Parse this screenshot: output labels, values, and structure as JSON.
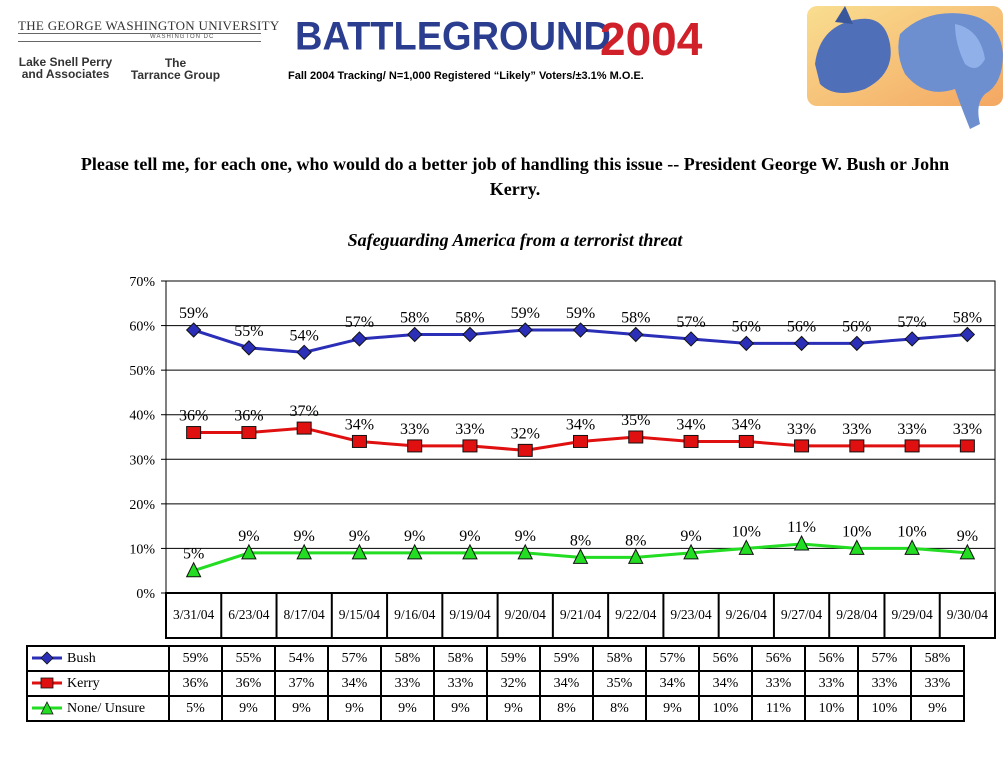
{
  "header": {
    "university": "THE GEORGE WASHINGTON UNIVERSITY",
    "university_sub": "WASHINGTON DC",
    "firm1": "Lake Snell Perry and Associates",
    "firm1_line1": "Lake Snell Perry",
    "firm1_line2": "and Associates",
    "firm2_line1": "The",
    "firm2_line2": "Tarrance Group",
    "battleground": "BATTLEGROUND",
    "year": "2004",
    "tracking": "Fall 2004 Tracking/ N=1,000 Registered “Likely” Voters/±3.1% M.O.E."
  },
  "question": "Please tell me, for each one, who would do a better job of handling this issue  --  President George W. Bush or John Kerry.",
  "colors": {
    "bush": "#2b2fb8",
    "kerry": "#e01010",
    "none": "#22dd22",
    "title_blue": "#2a3d8f",
    "title_red": "#d0202a"
  },
  "chart_data": {
    "type": "line",
    "title": "Safeguarding America from a terrorist threat",
    "categories": [
      "3/31/04",
      "6/23/04",
      "8/17/04",
      "9/15/04",
      "9/16/04",
      "9/19/04",
      "9/20/04",
      "9/21/04",
      "9/22/04",
      "9/23/04",
      "9/26/04",
      "9/27/04",
      "9/28/04",
      "9/29/04",
      "9/30/04"
    ],
    "yticks": [
      "0%",
      "10%",
      "20%",
      "30%",
      "40%",
      "50%",
      "60%",
      "70%"
    ],
    "ylim": [
      0,
      70
    ],
    "grid": true,
    "series": [
      {
        "name": "Bush",
        "marker": "diamond",
        "values": [
          59,
          55,
          54,
          57,
          58,
          58,
          59,
          59,
          58,
          57,
          56,
          56,
          56,
          57,
          58
        ]
      },
      {
        "name": "Kerry",
        "marker": "square",
        "values": [
          36,
          36,
          37,
          34,
          33,
          33,
          32,
          34,
          35,
          34,
          34,
          33,
          33,
          33,
          33
        ]
      },
      {
        "name": "None/ Unsure",
        "marker": "triangle",
        "values": [
          5,
          9,
          9,
          9,
          9,
          9,
          9,
          8,
          8,
          9,
          10,
          11,
          10,
          10,
          9
        ]
      }
    ]
  }
}
